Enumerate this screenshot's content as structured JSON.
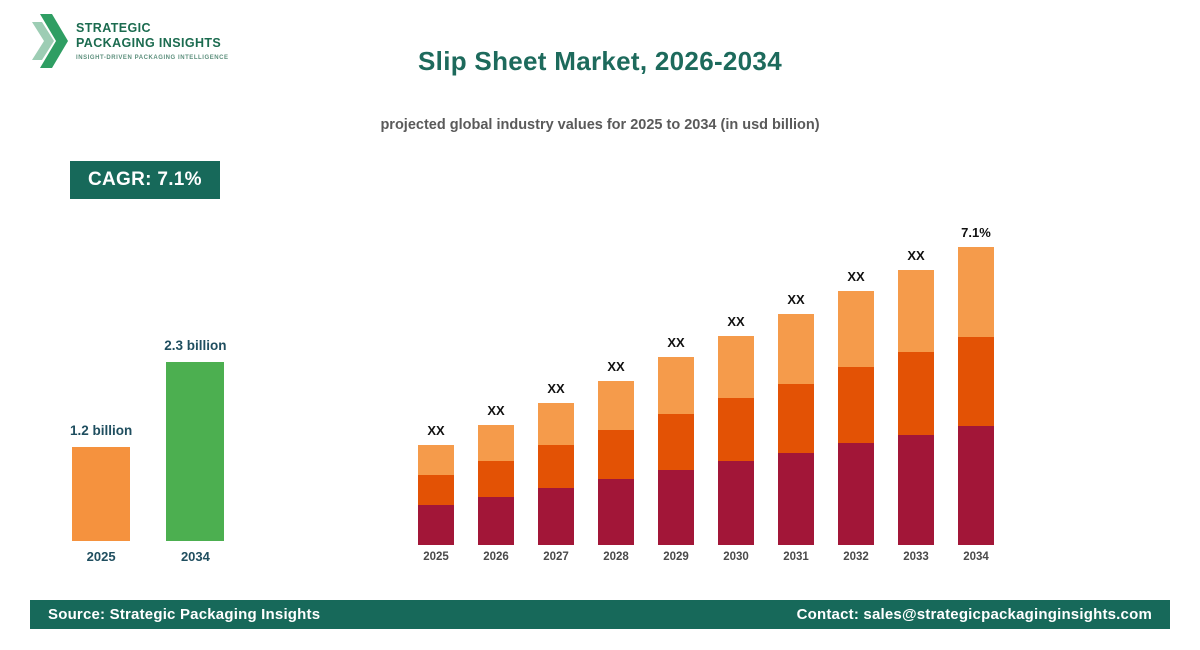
{
  "header": {
    "logo": {
      "line1": "STRATEGIC",
      "line2": "PACKAGING INSIGHTS",
      "tagline": "INSIGHT-DRIVEN PACKAGING INTELLIGENCE"
    },
    "title": "Slip Sheet Market, 2026-2034",
    "subtitle": "projected global industry values for 2025 to 2034 (in usd billion)"
  },
  "cagr_badge": "CAGR: 7.1%",
  "colors": {
    "brand_green": "#17695a",
    "mini_orange": "#F5923E",
    "mini_green": "#4CAF50",
    "stack_bottom": "#A21638",
    "stack_middle": "#E35205",
    "stack_top": "#F59B4B"
  },
  "chart_data": [
    {
      "type": "bar",
      "title": "Market growth 2025 vs 2034",
      "categories": [
        "2025",
        "2034"
      ],
      "values": [
        1.2,
        2.3
      ],
      "value_labels": [
        "1.2 billion",
        "2.3 billion"
      ],
      "bar_colors": [
        "#F5923E",
        "#4CAF50"
      ],
      "ylabel": "usd billion",
      "grid": false,
      "axes_shown": false
    },
    {
      "type": "bar",
      "stacked": true,
      "title": "Projected values 2025-2034 (stacked segments, values not disclosed)",
      "categories": [
        "2025",
        "2026",
        "2027",
        "2028",
        "2029",
        "2030",
        "2031",
        "2032",
        "2033",
        "2034"
      ],
      "bar_labels": [
        "XX",
        "XX",
        "XX",
        "XX",
        "XX",
        "XX",
        "XX",
        "XX",
        "XX",
        "7.1%"
      ],
      "series": [
        {
          "name": "bottom",
          "color": "#A21638",
          "values": [
            40,
            48,
            57,
            66,
            75,
            84,
            92,
            102,
            110,
            119
          ]
        },
        {
          "name": "middle",
          "color": "#E35205",
          "values": [
            30,
            36,
            43,
            49,
            56,
            63,
            69,
            76,
            83,
            89
          ]
        },
        {
          "name": "top",
          "color": "#F59B4B",
          "values": [
            30,
            36,
            42,
            49,
            57,
            62,
            70,
            76,
            82,
            90
          ]
        }
      ],
      "units": "relative height (actual values shown as XX)",
      "grid": false,
      "axes_shown": false
    }
  ],
  "footer": {
    "source": "Source: Strategic Packaging Insights",
    "contact": "Contact: sales@strategicpackaginginsights.com"
  }
}
